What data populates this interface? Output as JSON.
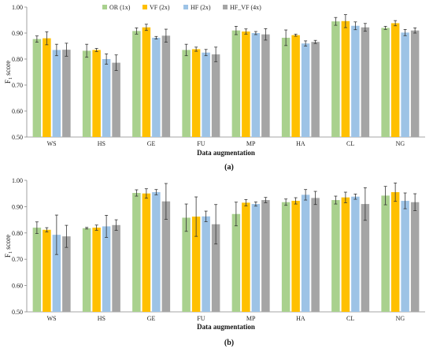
{
  "chart_data": [
    {
      "type": "bar",
      "panel_label": "(a)",
      "xlabel": "Data augmentation",
      "ylabel_main": "F",
      "ylabel_sub": "1",
      "ylabel_rest": " score",
      "ylim": [
        0.5,
        1.0
      ],
      "yticks": [
        "0.50",
        "0.60",
        "0.70",
        "0.80",
        "0.90",
        "1.00"
      ],
      "legend_placement": "top",
      "grid": false,
      "categories": [
        "WS",
        "HS",
        "GE",
        "FU",
        "MP",
        "HA",
        "CL",
        "NG"
      ],
      "series": [
        {
          "name": "OR (1x)",
          "color": "#a9d18e",
          "values": [
            0.877,
            0.832,
            0.908,
            0.835,
            0.91,
            0.882,
            0.945,
            0.92
          ],
          "errors": [
            0.012,
            0.025,
            0.012,
            0.022,
            0.016,
            0.03,
            0.015,
            0.006
          ]
        },
        {
          "name": "VF (2x)",
          "color": "#ffc000",
          "values": [
            0.88,
            0.835,
            0.922,
            0.838,
            0.906,
            0.892,
            0.946,
            0.938
          ],
          "errors": [
            0.025,
            0.006,
            0.012,
            0.008,
            0.01,
            0.004,
            0.025,
            0.01
          ]
        },
        {
          "name": "HF (2x)",
          "color": "#9dc3e6",
          "values": [
            0.835,
            0.8,
            0.882,
            0.825,
            0.9,
            0.86,
            0.928,
            0.902
          ],
          "errors": [
            0.022,
            0.02,
            0.005,
            0.012,
            0.006,
            0.01,
            0.015,
            0.012
          ]
        },
        {
          "name": "HF_VF (4x)",
          "color": "#a5a5a5",
          "values": [
            0.836,
            0.786,
            0.89,
            0.818,
            0.895,
            0.866,
            0.922,
            0.91
          ],
          "errors": [
            0.025,
            0.03,
            0.025,
            0.028,
            0.022,
            0.006,
            0.015,
            0.01
          ]
        }
      ]
    },
    {
      "type": "bar",
      "panel_label": "(b)",
      "xlabel": "Data augmentation",
      "ylabel_main": "F",
      "ylabel_sub": "1",
      "ylabel_rest": " score",
      "ylim": [
        0.5,
        1.0
      ],
      "yticks": [
        "0.50",
        "0.60",
        "0.70",
        "0.80",
        "0.90",
        "1.00"
      ],
      "grid": false,
      "categories": [
        "WS",
        "HS",
        "GE",
        "FU",
        "MP",
        "HA",
        "CL",
        "NG"
      ],
      "series": [
        {
          "name": "OR (1x)",
          "color": "#a9d18e",
          "values": [
            0.82,
            0.818,
            0.952,
            0.858,
            0.872,
            0.917,
            0.925,
            0.942
          ],
          "errors": [
            0.022,
            0.003,
            0.012,
            0.052,
            0.045,
            0.012,
            0.015,
            0.035
          ]
        },
        {
          "name": "VF (2x)",
          "color": "#ffc000",
          "values": [
            0.812,
            0.82,
            0.95,
            0.862,
            0.915,
            0.922,
            0.935,
            0.955
          ],
          "errors": [
            0.008,
            0.01,
            0.018,
            0.075,
            0.012,
            0.012,
            0.02,
            0.035
          ]
        },
        {
          "name": "HF (2x)",
          "color": "#9dc3e6",
          "values": [
            0.793,
            0.825,
            0.955,
            0.863,
            0.91,
            0.945,
            0.938,
            0.922
          ],
          "errors": [
            0.075,
            0.042,
            0.01,
            0.02,
            0.008,
            0.02,
            0.01,
            0.03
          ]
        },
        {
          "name": "HF_VF (4x)",
          "color": "#a5a5a5",
          "values": [
            0.787,
            0.83,
            0.92,
            0.833,
            0.925,
            0.933,
            0.91,
            0.917
          ],
          "errors": [
            0.042,
            0.02,
            0.068,
            0.075,
            0.01,
            0.025,
            0.062,
            0.032
          ]
        }
      ]
    }
  ]
}
